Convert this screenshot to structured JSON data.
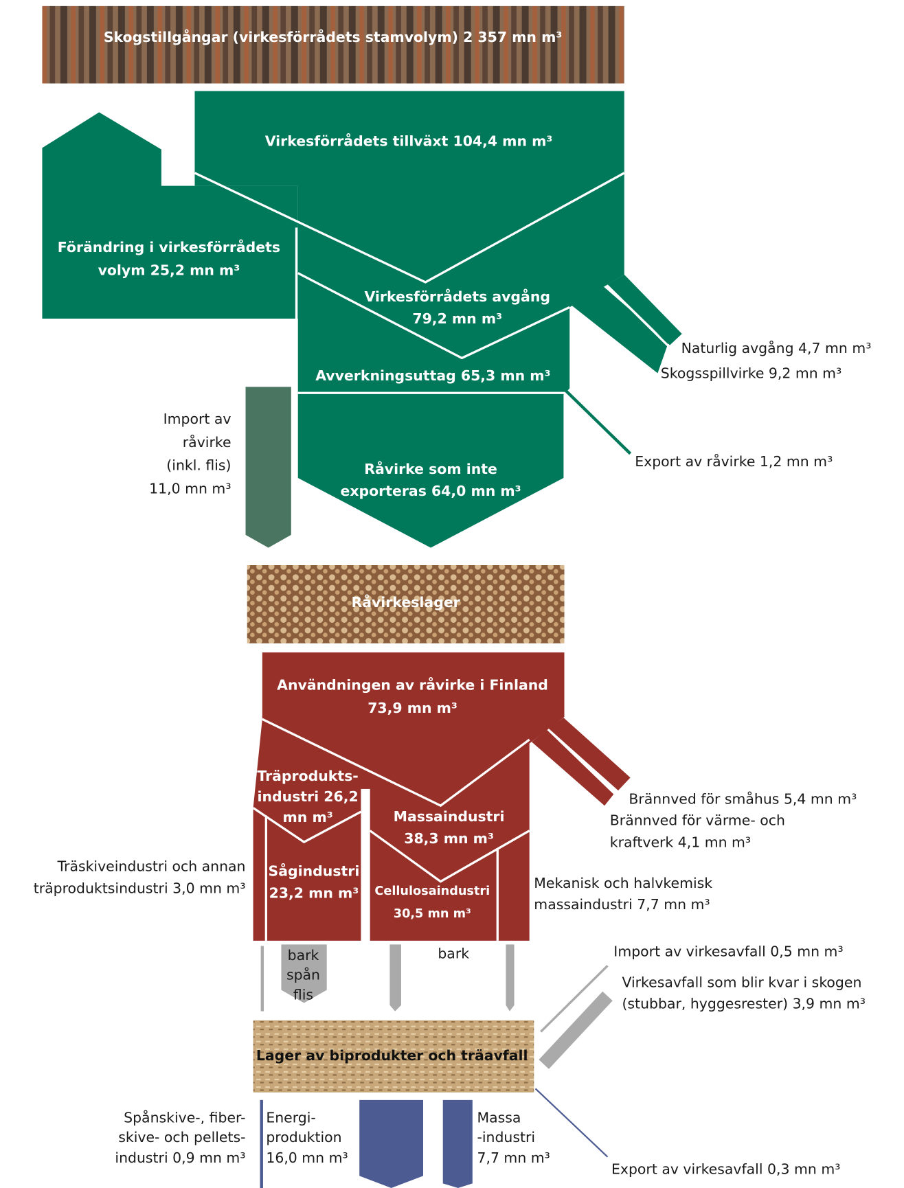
{
  "labels": {
    "header": "Skogstillgångar (virkesförrådets stamvolym) 2 357 mn m³",
    "growth": "Virkesförrådets tillväxt 104,4 mn m³",
    "change": [
      "Förändring i virkesförrådets",
      "volym 25,2 mn m³"
    ],
    "drain": [
      "Virkesförrådets avgång",
      "79,2 mn m³"
    ],
    "natural": "Naturlig avgång 4,7 mn m³",
    "residue": "Skogsspillvirke 9,2 mn m³",
    "harvest": "Avverkningsuttag 65,3 mn m³",
    "export_raw": "Export av råvirke 1,2 mn m³",
    "import_raw": [
      "Import av",
      "råvirke",
      "(inkl. flis)",
      "11,0 mn m³"
    ],
    "not_exported": [
      "Råvirke som inte",
      "exporteras 64,0 mn m³"
    ],
    "storage": "Råvirkeslager",
    "use": [
      "Användningen av råvirke i Finland",
      "73,9 mn m³"
    ],
    "firewood_houses": "Brännved för småhus 5,4 mn m³",
    "firewood_plants": [
      "Brännved för värme- och",
      "kraftverk 4,1 mn m³"
    ],
    "wood_products": [
      "Träprodukts-",
      "industri 26,2",
      "mn m³"
    ],
    "pulp": [
      "Massaindustri",
      "38,3 mn m³"
    ],
    "panel": [
      "Träskiveindustri och annan",
      "träproduktsindustri 3,0 mn m³"
    ],
    "sawmill": [
      "Sågindustri",
      "23,2 mn m³"
    ],
    "cellulose": [
      "Cellulosaindustri",
      "30,5 mn m³"
    ],
    "mechanical": [
      "Mekanisk och halvkemisk",
      "massaindustri 7,7 mn m³"
    ],
    "bark_chips": [
      "bark",
      "spån",
      "flis"
    ],
    "bark": "bark",
    "import_waste": "Import av virkesavfall 0,5 mn m³",
    "left_in_forest": [
      "Virkesavfall som blir kvar i skogen",
      "(stubbar, hyggesrester) 3,9 mn m³"
    ],
    "byproduct_storage": "Lager av biprodukter och träavfall",
    "board": [
      "Spånskive-, fiber-",
      "skive- och pellets-",
      "industri 0,9 mn m³"
    ],
    "energy": [
      "Energi-",
      "produktion",
      "16,0 mn m³"
    ],
    "pulp_industry": [
      "Massa",
      "-industri",
      "7,7 mn m³"
    ],
    "export_waste": "Export av virkesavfall 0,3 mn m³"
  }
}
